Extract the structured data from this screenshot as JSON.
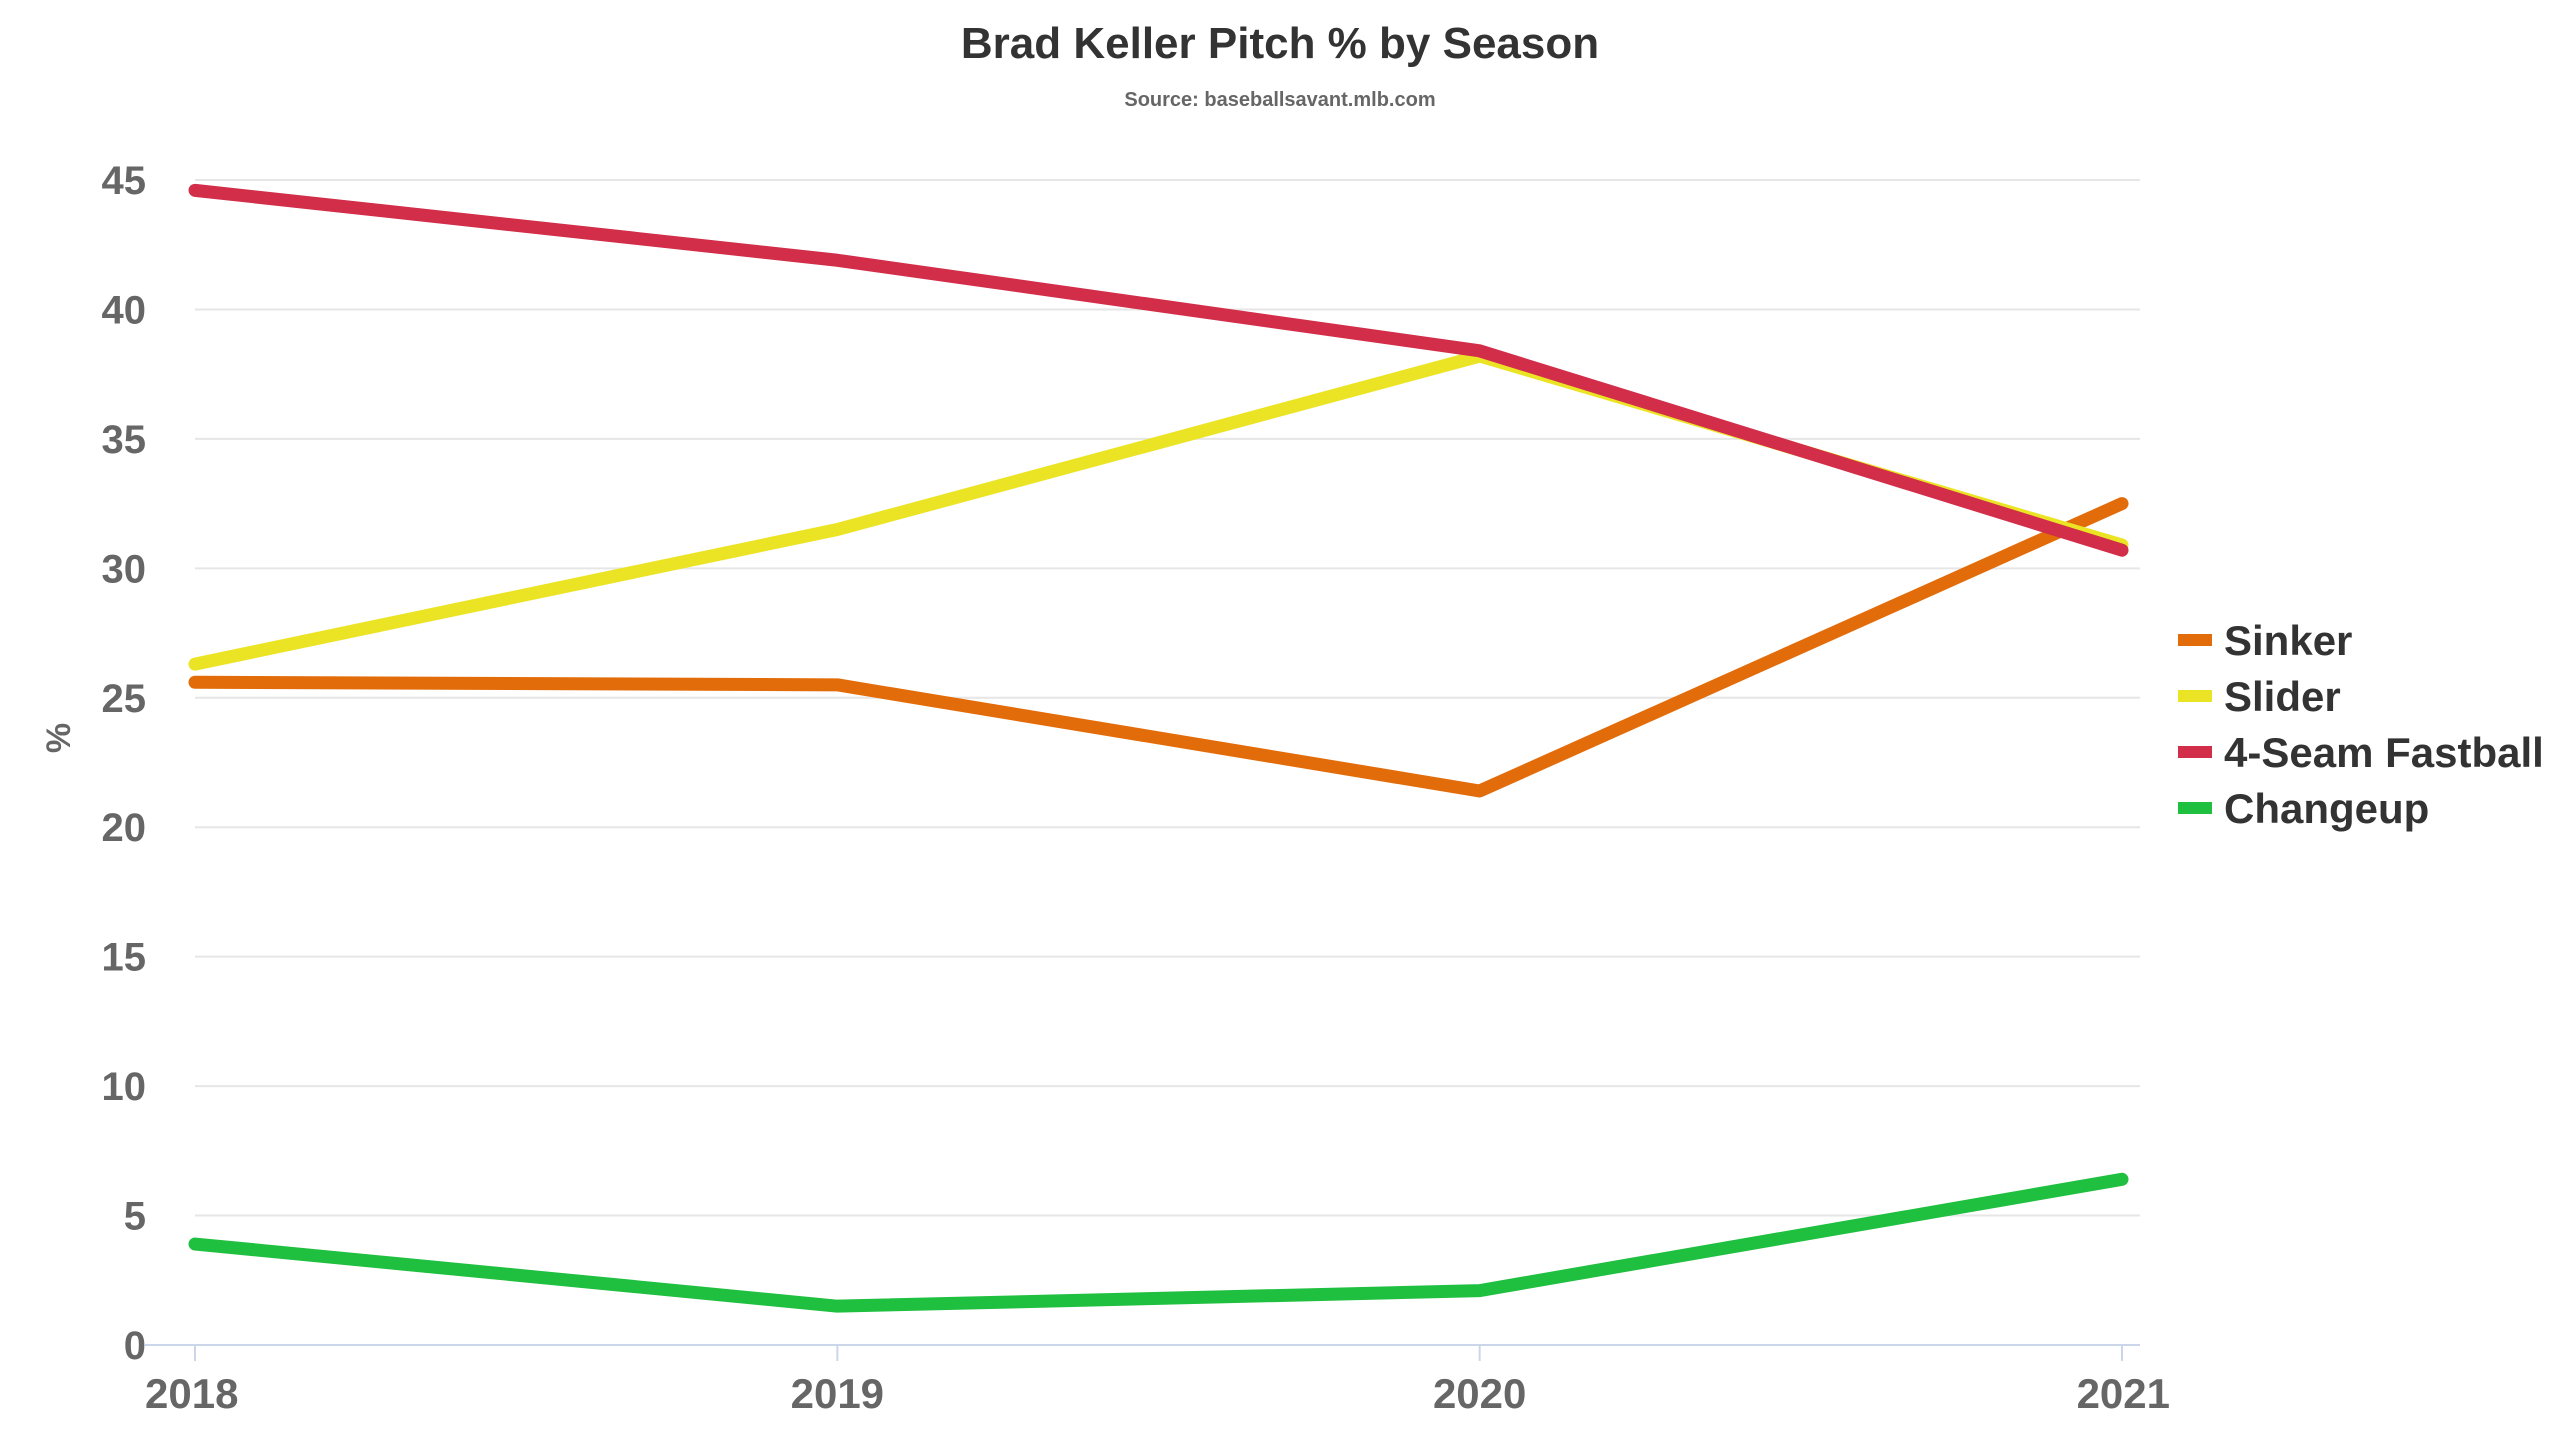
{
  "chart_data": {
    "type": "line",
    "title": "Brad Keller Pitch % by Season",
    "subtitle": "Source: baseballsavant.mlb.com",
    "xlabel": "",
    "ylabel": "%",
    "categories": [
      "2018",
      "2019",
      "2020",
      "2021"
    ],
    "ylim": [
      0,
      45
    ],
    "yticks": [
      0,
      5,
      10,
      15,
      20,
      25,
      30,
      35,
      40,
      45
    ],
    "grid": true,
    "legend_position": "right",
    "series": [
      {
        "name": "Sinker",
        "color": "#e36c0a",
        "values": [
          25.6,
          25.5,
          21.4,
          32.5
        ]
      },
      {
        "name": "Slider",
        "color": "#ebe425",
        "values": [
          26.3,
          31.5,
          38.2,
          30.9
        ]
      },
      {
        "name": "4-Seam Fastball",
        "color": "#d22d49",
        "values": [
          44.6,
          41.9,
          38.4,
          30.7
        ]
      },
      {
        "name": "Changeup",
        "color": "#1fbf3f",
        "values": [
          3.9,
          1.5,
          2.1,
          6.4
        ]
      }
    ]
  }
}
